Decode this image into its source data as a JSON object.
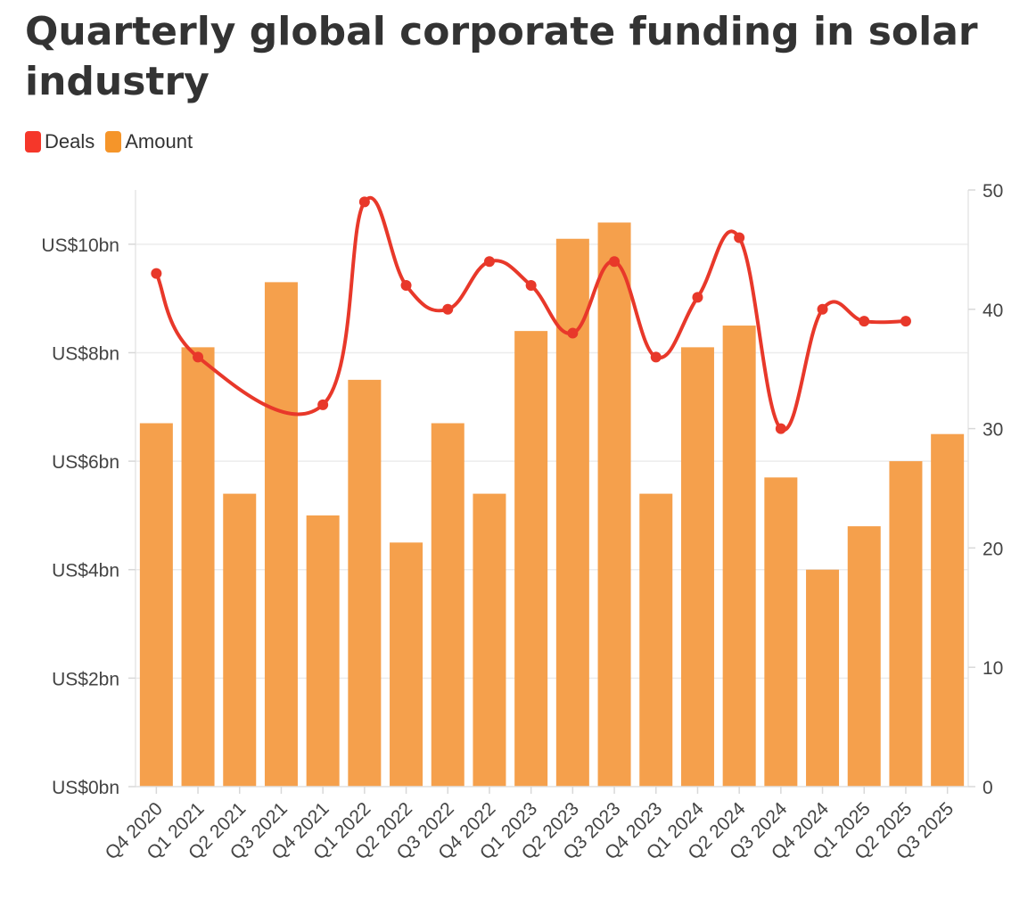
{
  "chart_data": {
    "type": "bar",
    "title": "Quarterly global corporate funding in solar industry",
    "categories": [
      "Q4 2020",
      "Q1 2021",
      "Q2 2021",
      "Q3 2021",
      "Q4 2021",
      "Q1 2022",
      "Q2 2022",
      "Q3 2022",
      "Q4 2022",
      "Q1 2023",
      "Q2 2023",
      "Q3 2023",
      "Q4 2023",
      "Q1 2024",
      "Q2 2024",
      "Q3 2024",
      "Q4 2024",
      "Q1 2025",
      "Q2 2025",
      "Q3 2025"
    ],
    "series": [
      {
        "name": "Amount",
        "type": "bar",
        "axis": "left",
        "unit": "US$ bn",
        "color": "#f5a04c",
        "values": [
          6.7,
          8.1,
          5.4,
          9.3,
          5.0,
          7.5,
          4.5,
          6.7,
          5.4,
          8.4,
          10.1,
          10.4,
          5.4,
          8.1,
          8.5,
          5.7,
          4.0,
          4.8,
          6.0,
          6.5
        ]
      },
      {
        "name": "Deals",
        "type": "line",
        "axis": "right",
        "color": "#e8382a",
        "values": [
          43,
          36,
          null,
          null,
          32,
          49,
          42,
          40,
          44,
          42,
          38,
          44,
          36,
          41,
          46,
          30,
          40,
          39,
          39,
          null
        ]
      }
    ],
    "y_left": {
      "min": 0,
      "max": 11,
      "ticks": [
        0,
        2,
        4,
        6,
        8,
        10
      ],
      "tick_labels": [
        "US$0bn",
        "US$2bn",
        "US$4bn",
        "US$6bn",
        "US$8bn",
        "US$10bn"
      ]
    },
    "y_right": {
      "min": 0,
      "max": 50,
      "ticks": [
        0,
        10,
        20,
        30,
        40,
        50
      ],
      "tick_labels": [
        "0",
        "10",
        "20",
        "30",
        "40",
        "50"
      ]
    },
    "grid": true,
    "legend_position": "top-left"
  },
  "legend": {
    "items": [
      {
        "label": "Deals",
        "color": "#f5372a"
      },
      {
        "label": "Amount",
        "color": "#f5952a"
      }
    ]
  }
}
